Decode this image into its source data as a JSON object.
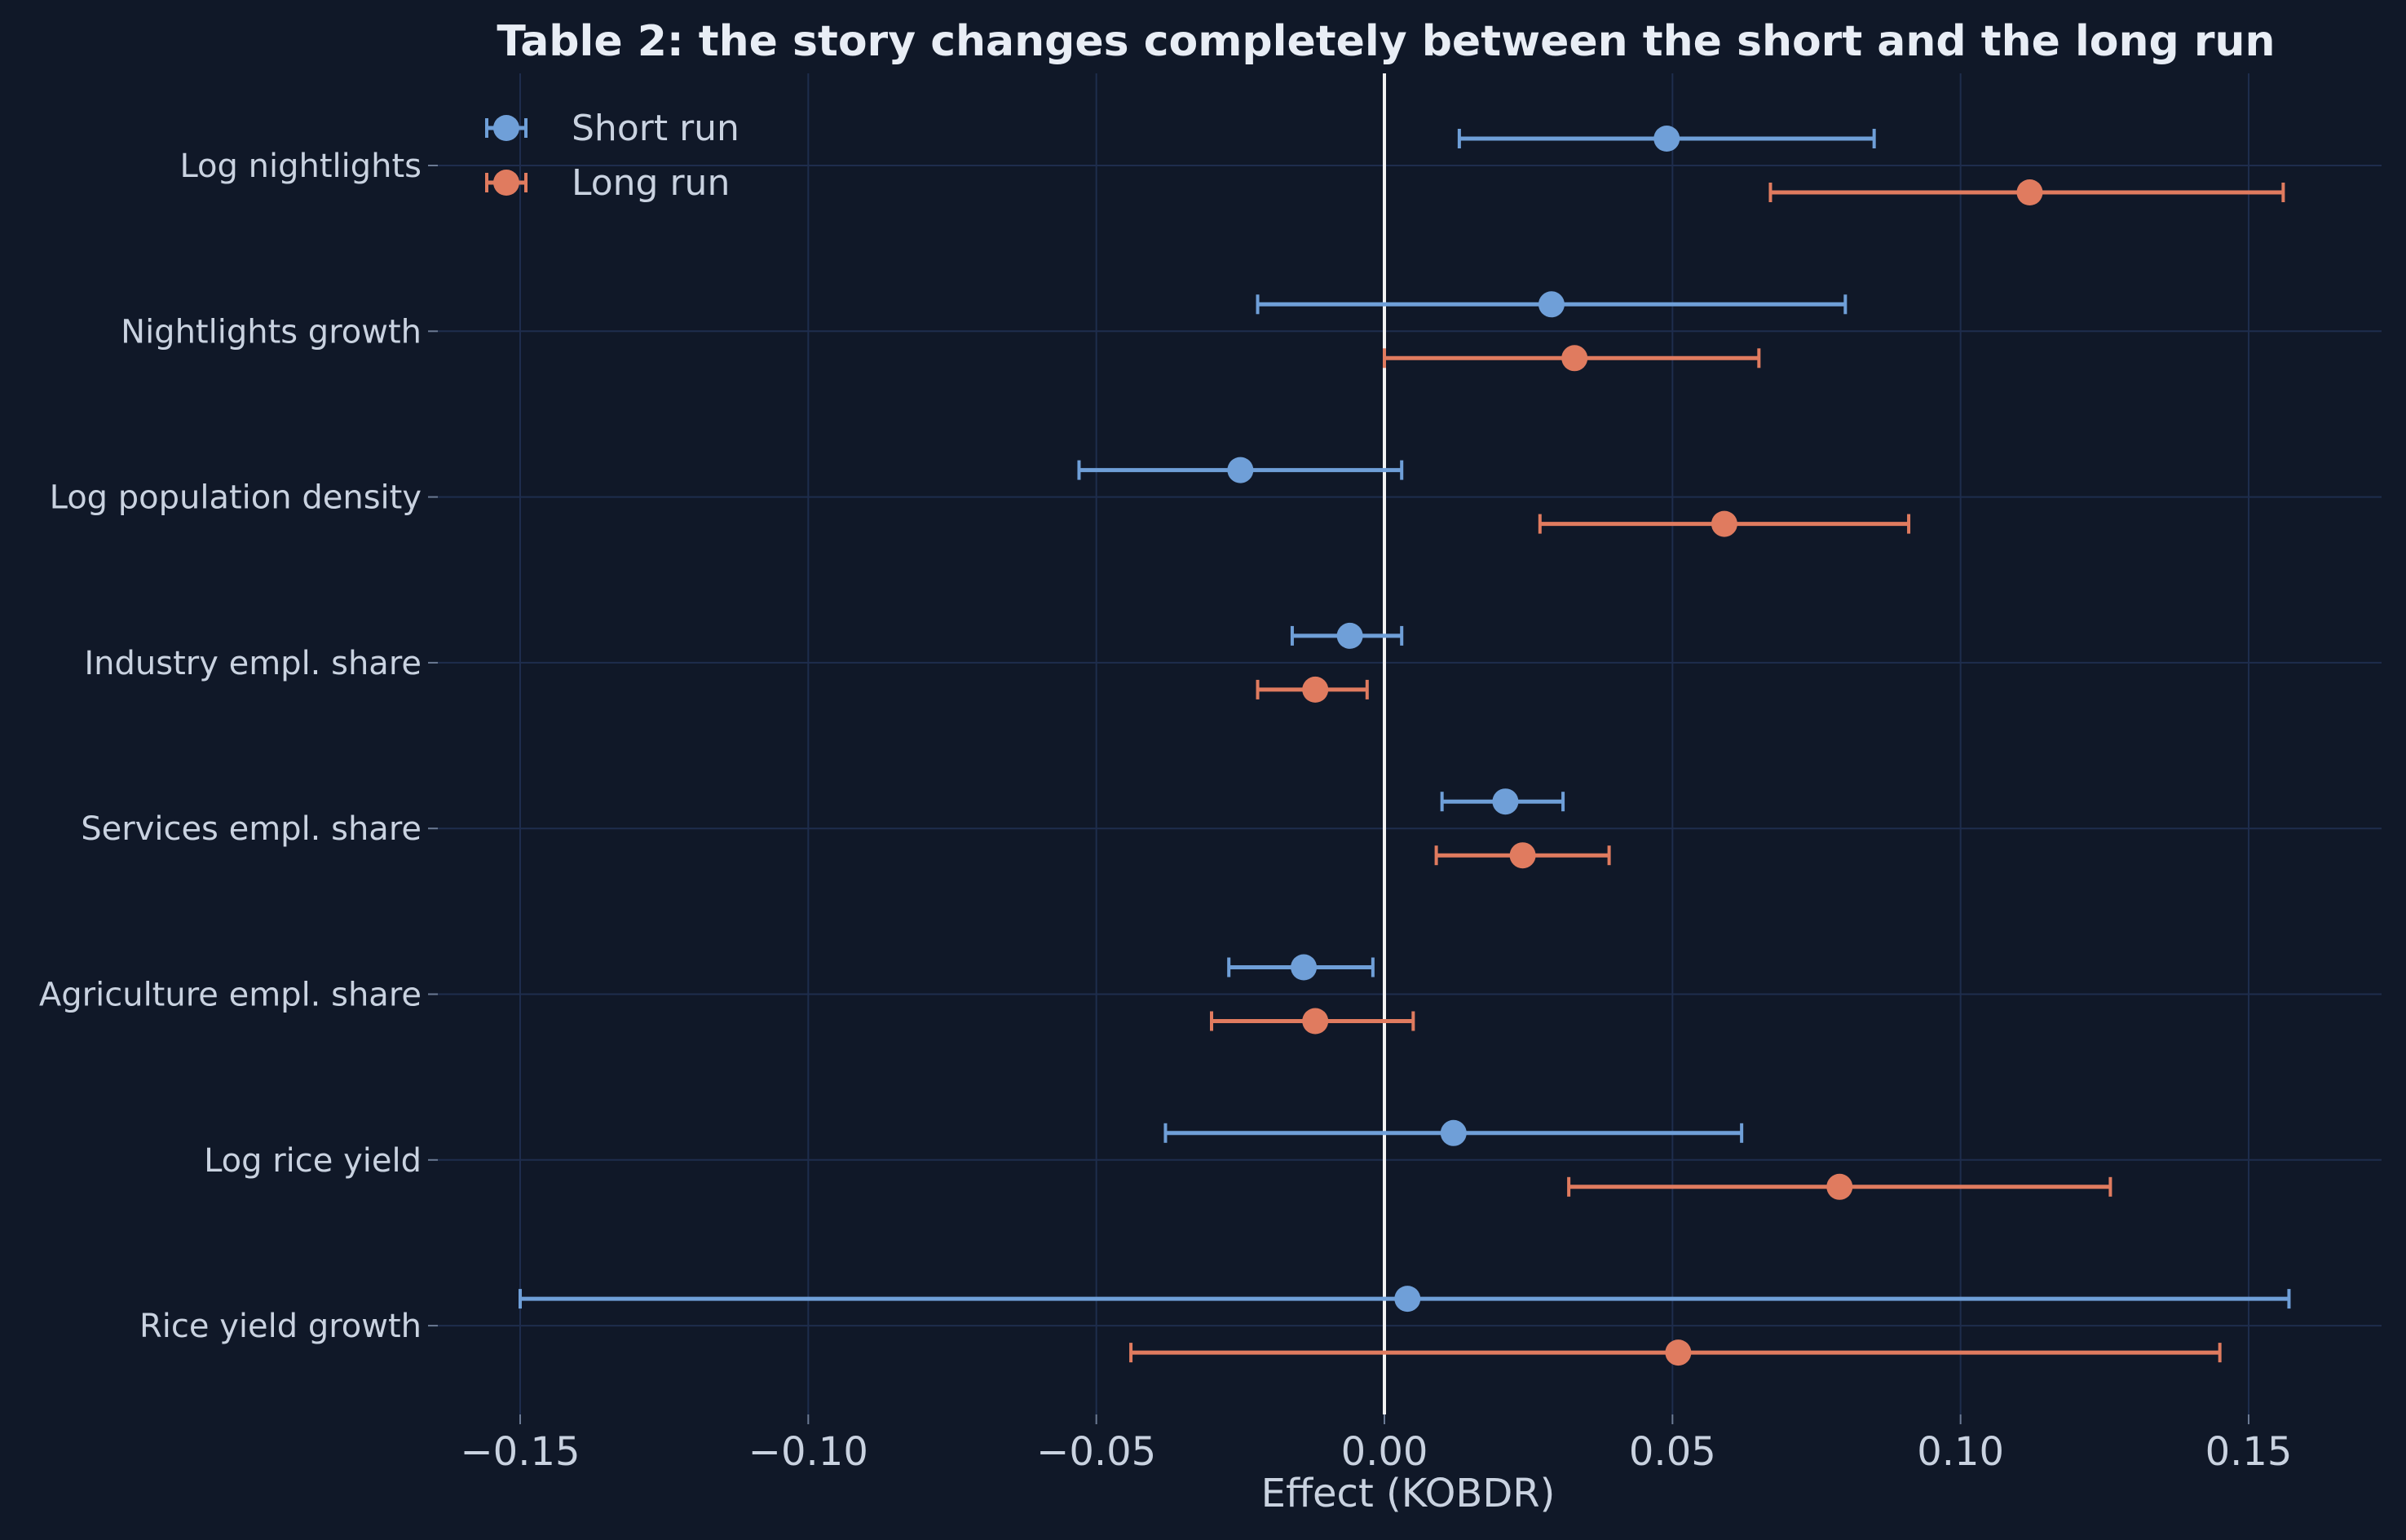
{
  "chart_data": {
    "type": "scatter",
    "subtype": "forest-plot-with-error-bars",
    "title": "Table 2: the story changes completely between the short and the long run",
    "xlabel": "Effect (KOBDR)",
    "ylabel": "",
    "xlim": [
      -0.162,
      0.172
    ],
    "xticks": [
      -0.15,
      -0.1,
      -0.05,
      0.0,
      0.05,
      0.1,
      0.15
    ],
    "xtick_labels": [
      "−0.15",
      "−0.10",
      "−0.05",
      "0.00",
      "0.05",
      "0.10",
      "0.15"
    ],
    "grid": true,
    "zero_line": true,
    "legend_position": "top-left",
    "categories": [
      "Log nightlights",
      "Nightlights growth",
      "Log population density",
      "Industry empl. share",
      "Services empl. share",
      "Agriculture empl. share",
      "Log rice yield",
      "Rice yield growth"
    ],
    "series": [
      {
        "name": "Short run",
        "color": "#6f9fd8",
        "estimates": [
          0.049,
          0.029,
          -0.025,
          -0.006,
          0.021,
          -0.014,
          0.012,
          0.004
        ],
        "ci_low": [
          0.013,
          -0.022,
          -0.053,
          -0.016,
          0.01,
          -0.027,
          -0.038,
          -0.15
        ],
        "ci_high": [
          0.085,
          0.08,
          0.003,
          0.003,
          0.031,
          -0.002,
          0.062,
          0.157
        ]
      },
      {
        "name": "Long run",
        "color": "#e07b5f",
        "estimates": [
          0.112,
          0.033,
          0.059,
          -0.012,
          0.024,
          -0.012,
          0.079,
          0.051
        ],
        "ci_low": [
          0.067,
          0.0,
          0.027,
          -0.022,
          0.009,
          -0.03,
          0.032,
          -0.044
        ],
        "ci_high": [
          0.156,
          0.065,
          0.091,
          -0.003,
          0.039,
          0.005,
          0.126,
          0.145
        ]
      }
    ]
  },
  "style": {
    "background": "#101828",
    "grid_color": "#1e2d4d",
    "zero_line_color": "#f2f2f2",
    "text_color": "#c9d2e0"
  }
}
